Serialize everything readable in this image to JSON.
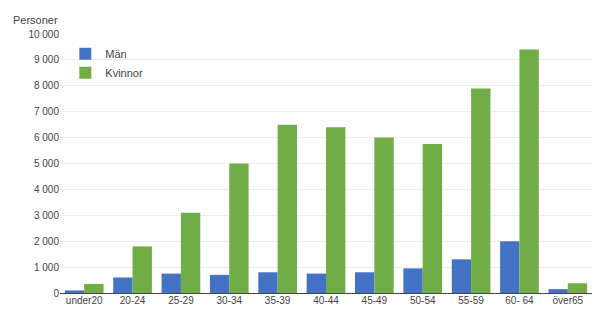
{
  "chart_data": {
    "type": "bar",
    "ylabel": "Personer",
    "categories": [
      "under20",
      "20-24",
      "25-29",
      "30-34",
      "35-39",
      "40-44",
      "45-49",
      "50-54",
      "55-59",
      "60- 64",
      "över65"
    ],
    "series": [
      {
        "name": "Män",
        "color": "#4472c4",
        "values": [
          100,
          600,
          750,
          700,
          800,
          750,
          800,
          950,
          1300,
          2000,
          150
        ]
      },
      {
        "name": "Kvinnor",
        "color": "#70ad47",
        "values": [
          350,
          1800,
          3100,
          5000,
          6500,
          6400,
          6000,
          5750,
          7900,
          9400,
          375
        ]
      }
    ],
    "ylim": [
      0,
      10000
    ],
    "yticks": [
      0,
      {
        "value": 1000,
        "label": "1 000"
      },
      {
        "value": 2000,
        "label": "2 000"
      },
      {
        "value": 3000,
        "label": "3 000"
      },
      {
        "value": 4000,
        "label": "4 000"
      },
      {
        "value": 5000,
        "label": "5 000"
      },
      {
        "value": 6000,
        "label": "6 000"
      },
      {
        "value": 7000,
        "label": "7 000"
      },
      {
        "value": 8000,
        "label": "8 000"
      },
      {
        "value": 9000,
        "label": "9 000"
      },
      {
        "value": 10000,
        "label": "10 000"
      }
    ],
    "grid": true,
    "legend": "upper left"
  }
}
